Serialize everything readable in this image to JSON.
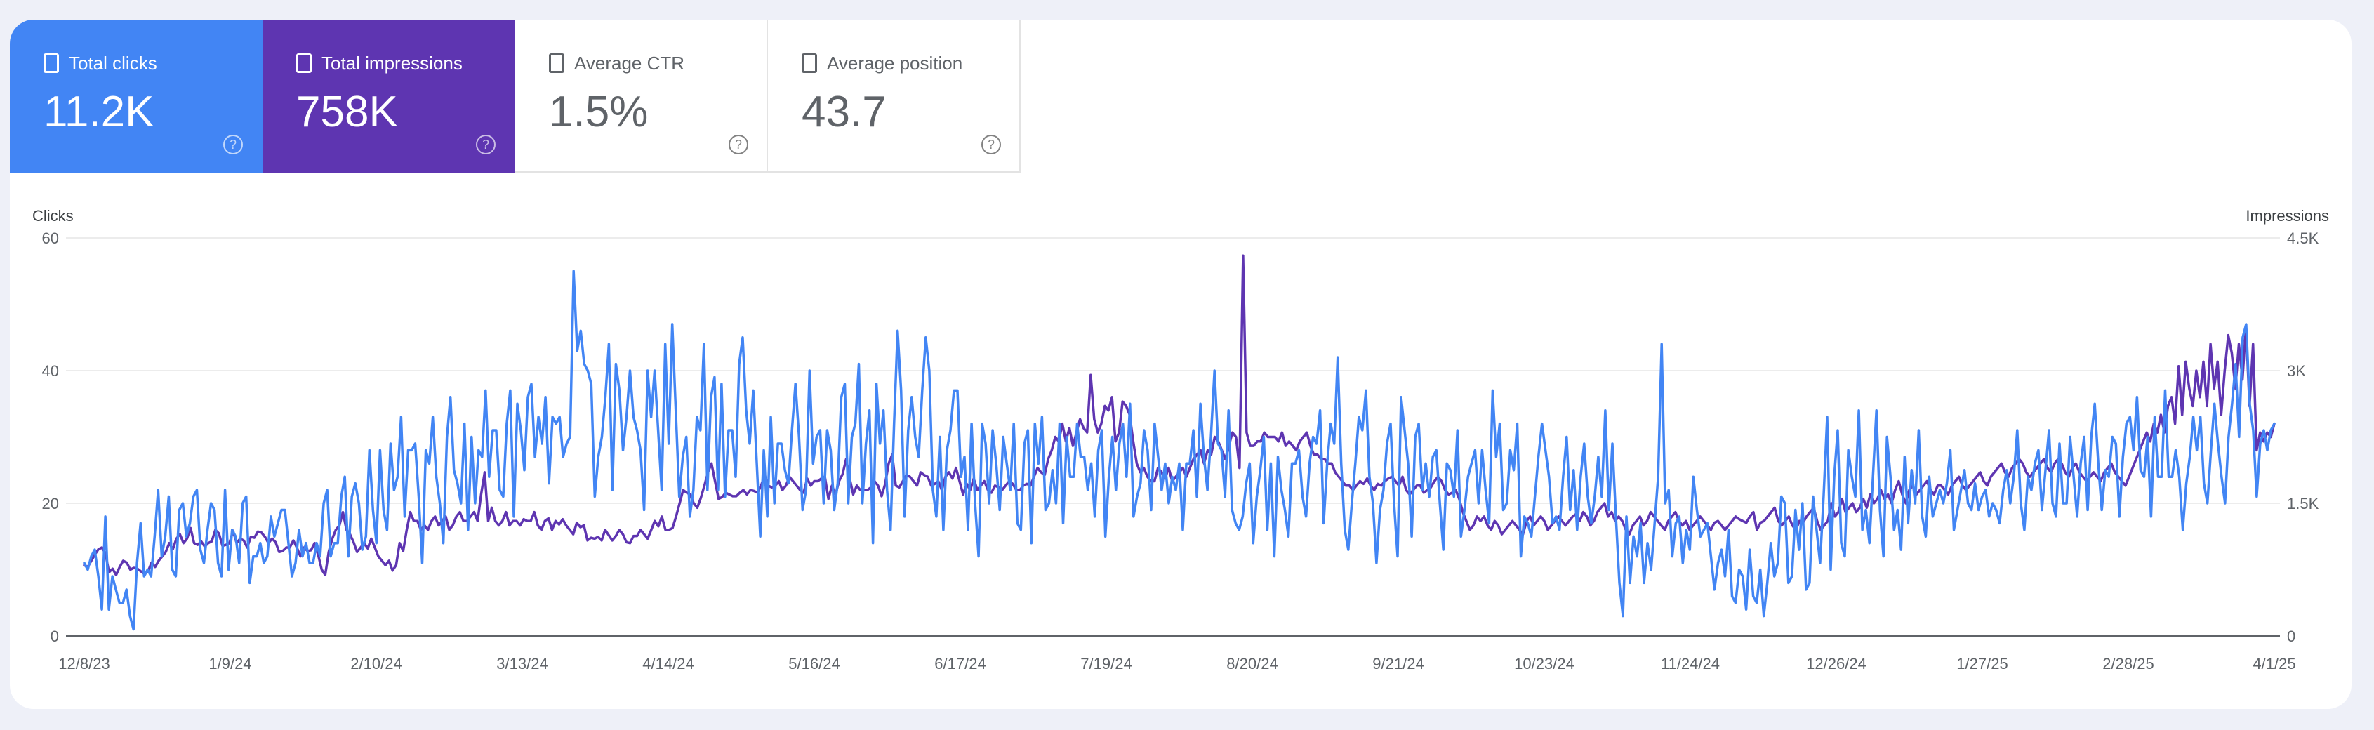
{
  "metrics": [
    {
      "key": "clicks",
      "label": "Total clicks",
      "value": "11.2K"
    },
    {
      "key": "impressions",
      "label": "Total impressions",
      "value": "758K"
    },
    {
      "key": "ctr",
      "label": "Average CTR",
      "value": "1.5%"
    },
    {
      "key": "position",
      "label": "Average position",
      "value": "43.7"
    }
  ],
  "help_glyph": "?",
  "colors": {
    "clicks": "#4285f4",
    "impressions": "#5e35b1",
    "grid": "#e6e6e6",
    "axis": "#5f6368"
  },
  "chart_data": {
    "type": "line",
    "ylabel": "Clicks",
    "y2label": "Impressions",
    "ylim": [
      0,
      60
    ],
    "y2lim": [
      0,
      4500
    ],
    "y_ticks": [
      "0",
      "20",
      "40",
      "60"
    ],
    "y2_ticks": [
      "0",
      "1.5K",
      "3K",
      "4.5K"
    ],
    "x_ticks": [
      "12/8/23",
      "1/9/24",
      "2/10/24",
      "3/13/24",
      "4/14/24",
      "5/16/24",
      "6/17/24",
      "7/19/24",
      "8/20/24",
      "9/21/24",
      "10/23/24",
      "11/24/24",
      "12/26/24",
      "1/27/25",
      "2/28/25",
      "4/1/25"
    ],
    "x_start": "2023-12-08",
    "grid": true,
    "series": [
      {
        "name": "Clicks",
        "axis": "left",
        "values": [
          11,
          10,
          12,
          13,
          9,
          4,
          18,
          4,
          9,
          7,
          5,
          5,
          7,
          3,
          1,
          11,
          17,
          9,
          10,
          9,
          15,
          22,
          12,
          15,
          21,
          10,
          9,
          19,
          20,
          15,
          17,
          21,
          22,
          13,
          11,
          16,
          20,
          19,
          11,
          9,
          22,
          10,
          16,
          15,
          11,
          20,
          21,
          8,
          12,
          12,
          14,
          11,
          12,
          18,
          15,
          17,
          19,
          19,
          14,
          9,
          11,
          16,
          12,
          14,
          11,
          11,
          14,
          12,
          20,
          22,
          12,
          14,
          14,
          21,
          24,
          12,
          21,
          23,
          20,
          13,
          15,
          28,
          19,
          14,
          28,
          19,
          16,
          29,
          22,
          24,
          33,
          18,
          28,
          28,
          29,
          21,
          11,
          28,
          26,
          33,
          24,
          20,
          14,
          30,
          36,
          25,
          23,
          20,
          32,
          16,
          30,
          20,
          28,
          27,
          37,
          24,
          31,
          31,
          22,
          21,
          32,
          37,
          18,
          35,
          31,
          25,
          36,
          38,
          27,
          33,
          29,
          36,
          23,
          33,
          32,
          33,
          27,
          29,
          30,
          55,
          43,
          46,
          41,
          40,
          38,
          21,
          27,
          30,
          36,
          44,
          22,
          41,
          37,
          28,
          33,
          40,
          33,
          31,
          28,
          19,
          40,
          33,
          40,
          31,
          22,
          44,
          29,
          47,
          34,
          21,
          27,
          30,
          18,
          22,
          33,
          31,
          44,
          22,
          36,
          39,
          22,
          38,
          21,
          31,
          31,
          24,
          41,
          45,
          34,
          29,
          37,
          26,
          15,
          28,
          18,
          33,
          20,
          29,
          29,
          25,
          23,
          31,
          38,
          30,
          19,
          22,
          40,
          26,
          30,
          31,
          20,
          31,
          28,
          19,
          23,
          36,
          38,
          20,
          30,
          32,
          41,
          20,
          29,
          34,
          14,
          38,
          29,
          34,
          22,
          16,
          32,
          46,
          37,
          18,
          31,
          36,
          30,
          27,
          37,
          45,
          40,
          22,
          18,
          30,
          16,
          28,
          31,
          37,
          37,
          24,
          27,
          16,
          32,
          20,
          12,
          32,
          29,
          20,
          31,
          26,
          19,
          30,
          26,
          22,
          32,
          17,
          16,
          29,
          31,
          14,
          32,
          26,
          33,
          19,
          20,
          25,
          20,
          32,
          17,
          30,
          24,
          24,
          32,
          27,
          27,
          22,
          26,
          18,
          28,
          31,
          15,
          24,
          30,
          22,
          29,
          32,
          24,
          35,
          18,
          21,
          23,
          31,
          28,
          19,
          32,
          27,
          22,
          26,
          20,
          24,
          22,
          26,
          16,
          26,
          26,
          31,
          21,
          35,
          27,
          22,
          30,
          40,
          29,
          28,
          21,
          34,
          19,
          17,
          16,
          18,
          23,
          26,
          14,
          21,
          25,
          30,
          16,
          26,
          12,
          27,
          22,
          19,
          15,
          26,
          26,
          28,
          21,
          18,
          26,
          30,
          29,
          34,
          17,
          26,
          32,
          29,
          42,
          26,
          16,
          13,
          20,
          26,
          33,
          31,
          37,
          24,
          20,
          11,
          19,
          22,
          29,
          32,
          20,
          12,
          36,
          31,
          26,
          15,
          30,
          32,
          22,
          26,
          21,
          27,
          28,
          20,
          13,
          26,
          25,
          21,
          31,
          15,
          19,
          24,
          26,
          28,
          20,
          28,
          22,
          17,
          37,
          27,
          32,
          19,
          20,
          28,
          25,
          32,
          12,
          18,
          17,
          15,
          21,
          27,
          32,
          28,
          24,
          17,
          18,
          16,
          24,
          30,
          19,
          25,
          16,
          24,
          29,
          21,
          17,
          21,
          27,
          21,
          34,
          19,
          29,
          18,
          8,
          3,
          18,
          8,
          15,
          12,
          17,
          8,
          14,
          10,
          17,
          24,
          44,
          20,
          22,
          12,
          17,
          18,
          11,
          16,
          13,
          24,
          19,
          15,
          16,
          17,
          12,
          7,
          11,
          13,
          9,
          16,
          6,
          5,
          10,
          9,
          4,
          13,
          6,
          5,
          10,
          3,
          8,
          14,
          9,
          11,
          21,
          20,
          8,
          9,
          19,
          13,
          20,
          7,
          8,
          21,
          16,
          11,
          21,
          33,
          10,
          24,
          31,
          14,
          12,
          28,
          24,
          21,
          34,
          16,
          19,
          14,
          24,
          34,
          19,
          12,
          30,
          24,
          16,
          19,
          13,
          27,
          17,
          25,
          20,
          31,
          18,
          15,
          24,
          18,
          20,
          22,
          20,
          23,
          28,
          16,
          19,
          22,
          25,
          20,
          19,
          23,
          19,
          21,
          22,
          18,
          20,
          19,
          17,
          22,
          25,
          20,
          24,
          31,
          20,
          16,
          24,
          22,
          26,
          28,
          19,
          25,
          31,
          20,
          18,
          29,
          20,
          20,
          30,
          24,
          18,
          26,
          30,
          19,
          30,
          35,
          26,
          19,
          25,
          24,
          30,
          29,
          18,
          27,
          32,
          33,
          28,
          36,
          25,
          24,
          30,
          18,
          33,
          24,
          24,
          37,
          24,
          24,
          28,
          24,
          16,
          23,
          27,
          33,
          28,
          33,
          23,
          20,
          28,
          35,
          29,
          24,
          20,
          30,
          35,
          41,
          30,
          45,
          47,
          35,
          31,
          21,
          29,
          31,
          28,
          31,
          32
        ]
      },
      {
        "name": "Impressions",
        "axis": "right",
        "values": [
          800,
          780,
          850,
          920,
          980,
          1000,
          930,
          720,
          760,
          690,
          780,
          850,
          830,
          750,
          770,
          760,
          730,
          700,
          730,
          830,
          780,
          850,
          900,
          950,
          1050,
          980,
          1100,
          1150,
          1050,
          1100,
          1220,
          1050,
          1030,
          1070,
          1010,
          1050,
          1070,
          1200,
          1160,
          1020,
          1030,
          1050,
          1190,
          1050,
          1100,
          1080,
          1000,
          1120,
          1110,
          1180,
          1170,
          1120,
          1050,
          1100,
          1060,
          950,
          960,
          1000,
          1000,
          1080,
          1000,
          900,
          1000,
          960,
          970,
          1050,
          920,
          750,
          690,
          950,
          1100,
          1200,
          1250,
          1400,
          1200,
          1150,
          1060,
          950,
          1000,
          1050,
          990,
          1100,
          1000,
          900,
          850,
          800,
          850,
          740,
          800,
          1050,
          960,
          1200,
          1400,
          1300,
          1300,
          1200,
          1250,
          1200,
          1300,
          1350,
          1250,
          1300,
          1350,
          1200,
          1250,
          1350,
          1400,
          1300,
          1300,
          1350,
          1400,
          1300,
          1600,
          1850,
          1300,
          1450,
          1300,
          1250,
          1300,
          1400,
          1250,
          1300,
          1300,
          1250,
          1320,
          1300,
          1300,
          1400,
          1250,
          1200,
          1300,
          1330,
          1200,
          1300,
          1260,
          1320,
          1250,
          1200,
          1150,
          1280,
          1230,
          1250,
          1080,
          1110,
          1100,
          1120,
          1080,
          1200,
          1140,
          1080,
          1130,
          1200,
          1150,
          1060,
          1050,
          1130,
          1130,
          1200,
          1150,
          1100,
          1200,
          1300,
          1240,
          1350,
          1200,
          1200,
          1220,
          1350,
          1500,
          1650,
          1620,
          1600,
          1500,
          1450,
          1560,
          1700,
          1850,
          1950,
          1750,
          1550,
          1570,
          1620,
          1600,
          1580,
          1580,
          1620,
          1650,
          1600,
          1650,
          1640,
          1620,
          1700,
          1820,
          1700,
          1680,
          1700,
          1750,
          1650,
          1700,
          1800,
          1750,
          1700,
          1650,
          1620,
          1780,
          1700,
          1750,
          1750,
          1780,
          1800,
          1550,
          1700,
          1600,
          1750,
          1830,
          2000,
          1780,
          1600,
          1700,
          1650,
          1650,
          1650,
          1680,
          1750,
          1700,
          1580,
          1720,
          1950,
          2050,
          1700,
          1680,
          1750,
          1820,
          1800,
          1750,
          1700,
          1850,
          1820,
          1800,
          1700,
          1720,
          1750,
          1650,
          1800,
          1850,
          1780,
          1900,
          1750,
          1600,
          1720,
          1650,
          1780,
          1650,
          1700,
          1750,
          1650,
          1620,
          1700,
          1680,
          1650,
          1700,
          1750,
          1720,
          1650,
          1650,
          1700,
          1720,
          1700,
          1800,
          1900,
          1850,
          1820,
          2000,
          2100,
          2250,
          2200,
          2400,
          2200,
          2350,
          2150,
          2300,
          2450,
          2350,
          2300,
          2950,
          2450,
          2300,
          2400,
          2600,
          2550,
          2700,
          2200,
          2300,
          2650,
          2600,
          2500,
          2200,
          1950,
          1850,
          1900,
          1800,
          1750,
          1750,
          1900,
          1850,
          1780,
          1900,
          1750,
          1800,
          1850,
          1900,
          1800,
          1900,
          2000,
          2050,
          2100,
          1950,
          2100,
          2050,
          2250,
          2200,
          2100,
          2000,
          2150,
          2300,
          2250,
          1900,
          4300,
          2300,
          2150,
          2150,
          2200,
          2200,
          2300,
          2250,
          2250,
          2250,
          2200,
          2300,
          2150,
          2200,
          2150,
          2100,
          2200,
          2250,
          2300,
          2150,
          2050,
          2050,
          2000,
          2000,
          1950,
          1950,
          1850,
          1800,
          1750,
          1700,
          1700,
          1650,
          1700,
          1750,
          1720,
          1780,
          1700,
          1650,
          1720,
          1700,
          1750,
          1780,
          1800,
          1750,
          1700,
          1800,
          1650,
          1600,
          1650,
          1700,
          1700,
          1620,
          1650,
          1680,
          1750,
          1800,
          1750,
          1650,
          1600,
          1620,
          1650,
          1550,
          1400,
          1300,
          1200,
          1250,
          1350,
          1300,
          1350,
          1250,
          1200,
          1300,
          1250,
          1150,
          1200,
          1250,
          1300,
          1250,
          1200,
          1150,
          1300,
          1350,
          1250,
          1300,
          1350,
          1300,
          1200,
          1250,
          1300,
          1350,
          1300,
          1250,
          1300,
          1350,
          1380,
          1300,
          1400,
          1350,
          1250,
          1300,
          1400,
          1450,
          1500,
          1350,
          1400,
          1300,
          1350,
          1300,
          1200,
          1150,
          1250,
          1300,
          1350,
          1250,
          1300,
          1400,
          1350,
          1300,
          1250,
          1200,
          1300,
          1350,
          1400,
          1300,
          1250,
          1300,
          1200,
          1250,
          1300,
          1350,
          1300,
          1250,
          1200,
          1280,
          1300,
          1250,
          1200,
          1250,
          1300,
          1350,
          1320,
          1300,
          1280,
          1350,
          1400,
          1200,
          1280,
          1300,
          1350,
          1400,
          1450,
          1300,
          1250,
          1300,
          1350,
          1250,
          1200,
          1300,
          1280,
          1350,
          1400,
          1450,
          1300,
          1200,
          1250,
          1300,
          1500,
          1350,
          1400,
          1550,
          1400,
          1450,
          1500,
          1400,
          1450,
          1550,
          1450,
          1600,
          1500,
          1550,
          1650,
          1550,
          1600,
          1500,
          1650,
          1750,
          1600,
          1500,
          1650,
          1700,
          1600,
          1650,
          1700,
          1750,
          1650,
          1600,
          1700,
          1700,
          1650,
          1600,
          1700,
          1750,
          1800,
          1700,
          1650,
          1700,
          1750,
          1800,
          1850,
          1750,
          1700,
          1800,
          1850,
          1900,
          1950,
          1850,
          1800,
          1900,
          1950,
          2000,
          1950,
          1850,
          1800,
          1850,
          1900,
          1950,
          2000,
          1900,
          1850,
          1950,
          2000,
          1950,
          1850,
          1800,
          1900,
          1950,
          1850,
          1800,
          1750,
          1800,
          1850,
          1800,
          1750,
          1850,
          1900,
          1950,
          1850,
          1800,
          1750,
          1700,
          1800,
          1900,
          2000,
          2100,
          2200,
          2300,
          2200,
          2400,
          2300,
          2500,
          2300,
          2600,
          2700,
          2400,
          3050,
          2500,
          3100,
          2800,
          2600,
          3000,
          2700,
          3100,
          2600,
          3300,
          2800,
          3100,
          2500,
          3000,
          3400,
          3200,
          2800,
          3300,
          2900,
          3500,
          2600,
          3300,
          2100,
          2300,
          2200,
          2300,
          2250,
          2400
        ]
      }
    ]
  }
}
